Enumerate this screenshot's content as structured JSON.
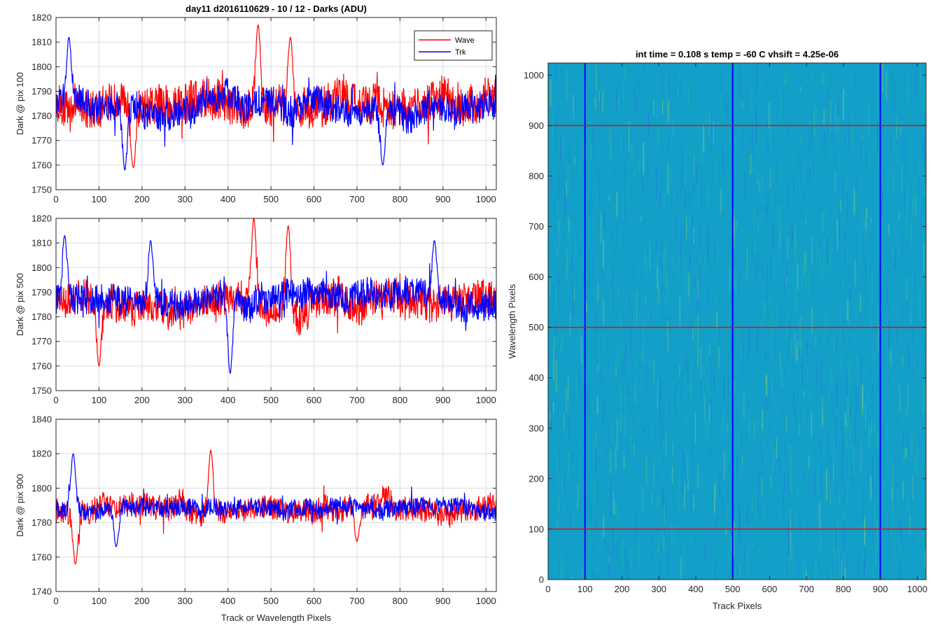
{
  "figure": {
    "background": "#ffffff"
  },
  "chart_data": [
    {
      "type": "line",
      "title": "day11 d2016110629 - 10 / 12 - Darks (ADU)",
      "xlabel": "",
      "ylabel": "Dark @ pix 100",
      "xlim": [
        0,
        1024
      ],
      "ylim": [
        1750,
        1820
      ],
      "xticks": [
        0,
        100,
        200,
        300,
        400,
        500,
        600,
        700,
        800,
        900,
        1000
      ],
      "yticks": [
        1750,
        1760,
        1770,
        1780,
        1790,
        1800,
        1810,
        1820
      ],
      "grid": true,
      "legend": {
        "position": "top-right",
        "entries": [
          "Wave",
          "Trk"
        ]
      },
      "series": [
        {
          "name": "Wave",
          "color": "#ff0000",
          "mean": 1786,
          "noise": 8,
          "features": [
            {
              "x": 180,
              "y": 1759
            },
            {
              "x": 470,
              "y": 1817
            },
            {
              "x": 545,
              "y": 1812
            }
          ]
        },
        {
          "name": "Trk",
          "color": "#0000ff",
          "mean": 1784,
          "noise": 6,
          "features": [
            {
              "x": 30,
              "y": 1812
            },
            {
              "x": 160,
              "y": 1758
            },
            {
              "x": 760,
              "y": 1760
            }
          ]
        }
      ]
    },
    {
      "type": "line",
      "title": "",
      "xlabel": "",
      "ylabel": "Dark @ pix 500",
      "xlim": [
        0,
        1024
      ],
      "ylim": [
        1750,
        1820
      ],
      "xticks": [
        0,
        100,
        200,
        300,
        400,
        500,
        600,
        700,
        800,
        900,
        1000
      ],
      "yticks": [
        1750,
        1760,
        1770,
        1780,
        1790,
        1800,
        1810,
        1820
      ],
      "grid": true,
      "series": [
        {
          "name": "Wave",
          "color": "#ff0000",
          "mean": 1785,
          "noise": 7,
          "features": [
            {
              "x": 100,
              "y": 1760
            },
            {
              "x": 460,
              "y": 1820
            },
            {
              "x": 540,
              "y": 1817
            }
          ]
        },
        {
          "name": "Trk",
          "color": "#0000ff",
          "mean": 1787,
          "noise": 6,
          "features": [
            {
              "x": 20,
              "y": 1813
            },
            {
              "x": 220,
              "y": 1811
            },
            {
              "x": 405,
              "y": 1757
            },
            {
              "x": 880,
              "y": 1811
            }
          ]
        }
      ]
    },
    {
      "type": "line",
      "title": "",
      "xlabel": "Track or Wavelength Pixels",
      "ylabel": "Dark @ pix 900",
      "xlim": [
        0,
        1024
      ],
      "ylim": [
        1740,
        1840
      ],
      "xticks": [
        0,
        100,
        200,
        300,
        400,
        500,
        600,
        700,
        800,
        900,
        1000
      ],
      "yticks": [
        1740,
        1760,
        1780,
        1800,
        1820,
        1840
      ],
      "grid": true,
      "series": [
        {
          "name": "Wave",
          "color": "#ff0000",
          "mean": 1787,
          "noise": 7,
          "features": [
            {
              "x": 45,
              "y": 1756
            },
            {
              "x": 360,
              "y": 1822
            },
            {
              "x": 700,
              "y": 1769
            }
          ]
        },
        {
          "name": "Trk",
          "color": "#0000ff",
          "mean": 1788,
          "noise": 5,
          "features": [
            {
              "x": 40,
              "y": 1820
            },
            {
              "x": 140,
              "y": 1766
            }
          ]
        }
      ]
    },
    {
      "type": "heatmap",
      "title": "int time = 0.108 s   temp = -60 C   vhsift = 4.25e-06",
      "xlabel": "Track Pixels",
      "ylabel": "Wavelength Pixels",
      "xlim": [
        0,
        1024
      ],
      "ylim": [
        0,
        1024
      ],
      "xticks": [
        0,
        100,
        200,
        300,
        400,
        500,
        600,
        700,
        800,
        900,
        1000
      ],
      "yticks": [
        0,
        100,
        200,
        300,
        400,
        500,
        600,
        700,
        800,
        900,
        1000
      ],
      "colormap": [
        "#1f7fd6",
        "#12a0c8",
        "#20b4b0",
        "#6ec48c"
      ],
      "vertical_lines": {
        "x": [
          100,
          500,
          900
        ],
        "color": "#0000ff"
      },
      "horizontal_lines": {
        "y": [
          100,
          500,
          900
        ],
        "color": "#ff0000"
      }
    }
  ]
}
